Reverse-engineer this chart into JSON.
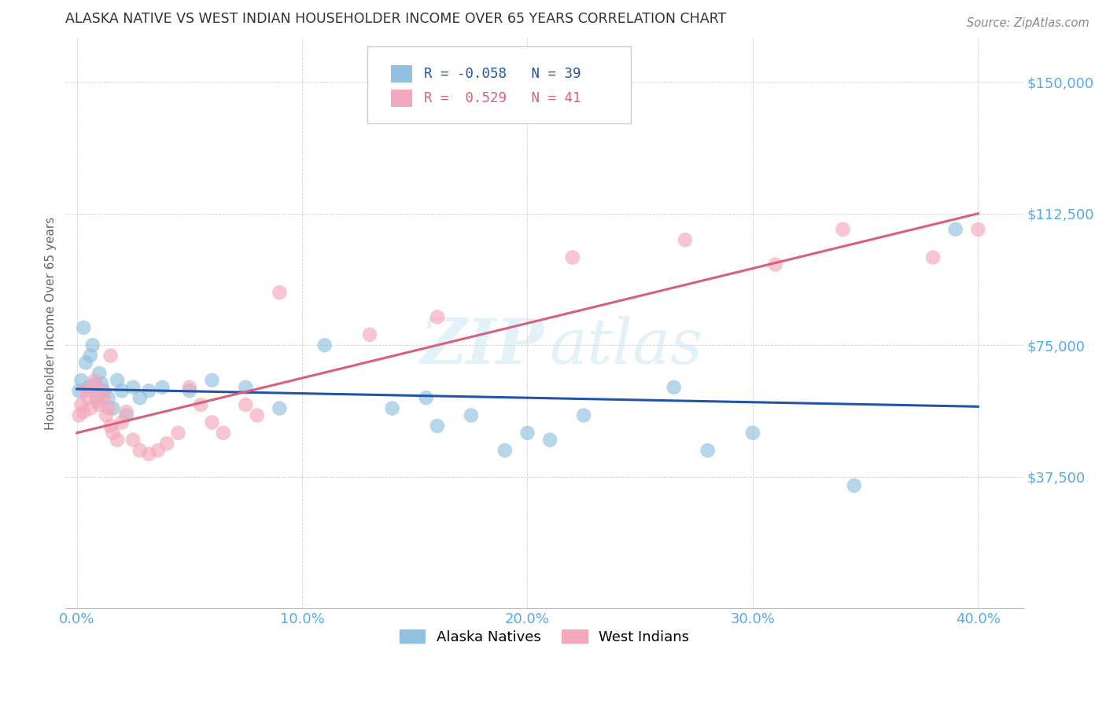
{
  "title": "ALASKA NATIVE VS WEST INDIAN HOUSEHOLDER INCOME OVER 65 YEARS CORRELATION CHART",
  "source": "Source: ZipAtlas.com",
  "ylabel": "Householder Income Over 65 years",
  "xlabel_ticks": [
    "0.0%",
    "10.0%",
    "20.0%",
    "30.0%",
    "40.0%"
  ],
  "xlabel_vals": [
    0.0,
    0.1,
    0.2,
    0.3,
    0.4
  ],
  "ytick_labels": [
    "$37,500",
    "$75,000",
    "$112,500",
    "$150,000"
  ],
  "ytick_vals": [
    37500,
    75000,
    112500,
    150000
  ],
  "ylim": [
    0,
    162500
  ],
  "xlim": [
    -0.005,
    0.42
  ],
  "legend_blue_r": "-0.058",
  "legend_blue_n": "39",
  "legend_pink_r": "0.529",
  "legend_pink_n": "41",
  "watermark_zip": "ZIP",
  "watermark_atlas": "atlas",
  "blue_color": "#92c0e0",
  "pink_color": "#f4a8bb",
  "line_blue": "#2255a4",
  "line_pink": "#d9607a",
  "title_color": "#333333",
  "source_color": "#888888",
  "axis_label_color": "#55aaee",
  "alaska_x": [
    0.001,
    0.002,
    0.003,
    0.004,
    0.005,
    0.006,
    0.007,
    0.008,
    0.009,
    0.01,
    0.011,
    0.012,
    0.014,
    0.016,
    0.018,
    0.02,
    0.022,
    0.025,
    0.028,
    0.032,
    0.038,
    0.05,
    0.06,
    0.075,
    0.09,
    0.11,
    0.14,
    0.16,
    0.2,
    0.225,
    0.265,
    0.3,
    0.155,
    0.175,
    0.19,
    0.21,
    0.28,
    0.345,
    0.39
  ],
  "alaska_y": [
    62000,
    65000,
    80000,
    70000,
    63000,
    72000,
    75000,
    64000,
    60000,
    67000,
    64000,
    62000,
    60000,
    57000,
    65000,
    62000,
    55000,
    63000,
    60000,
    62000,
    63000,
    62000,
    65000,
    63000,
    57000,
    75000,
    57000,
    52000,
    50000,
    55000,
    63000,
    50000,
    60000,
    55000,
    45000,
    48000,
    45000,
    35000,
    108000
  ],
  "west_x": [
    0.001,
    0.002,
    0.003,
    0.004,
    0.005,
    0.006,
    0.007,
    0.008,
    0.009,
    0.01,
    0.011,
    0.012,
    0.013,
    0.014,
    0.015,
    0.016,
    0.018,
    0.02,
    0.022,
    0.025,
    0.028,
    0.032,
    0.036,
    0.04,
    0.045,
    0.05,
    0.055,
    0.06,
    0.065,
    0.075,
    0.08,
    0.09,
    0.13,
    0.16,
    0.22,
    0.27,
    0.31,
    0.34,
    0.38,
    0.4,
    0.015
  ],
  "west_y": [
    55000,
    58000,
    56000,
    62000,
    60000,
    57000,
    63000,
    65000,
    59000,
    58000,
    62000,
    60000,
    55000,
    57000,
    52000,
    50000,
    48000,
    53000,
    56000,
    48000,
    45000,
    44000,
    45000,
    47000,
    50000,
    63000,
    58000,
    53000,
    50000,
    58000,
    55000,
    90000,
    78000,
    83000,
    100000,
    105000,
    98000,
    108000,
    100000,
    108000,
    72000
  ]
}
